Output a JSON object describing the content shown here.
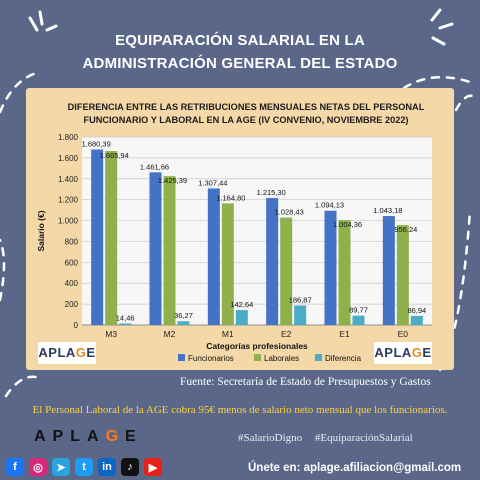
{
  "header": {
    "title_line1": "EQUIPARACIÓN SALARIAL EN LA",
    "title_line2": "ADMINISTRACIÓN GENERAL DEL ESTADO"
  },
  "chart_data": {
    "type": "bar",
    "title_line1": "DIFERENCIA ENTRE LAS RETRIBUCIONES MENSUALES NETAS DEL PERSONAL",
    "title_line2": "FUNCIONARIO Y LABORAL EN LA AGE (IV CONVENIO, NOVIEMBRE 2022)",
    "xlabel": "Categorías profesionales",
    "ylabel": "Salario (€)",
    "ylim": [
      0,
      1800
    ],
    "yticks": [
      0,
      200,
      400,
      600,
      800,
      1000,
      1200,
      1400,
      1600,
      1800
    ],
    "ytick_labels": [
      "0",
      "200",
      "400",
      "600",
      "800",
      "1.000",
      "1.200",
      "1.400",
      "1.600",
      "1.800"
    ],
    "grid": true,
    "legend_position": "bottom",
    "categories": [
      "M3",
      "M2",
      "M1",
      "E2",
      "E1",
      "E0"
    ],
    "series": [
      {
        "name": "Funcionarios",
        "color": "#4472c4",
        "values": [
          1680.39,
          1461.66,
          1307.44,
          1215.3,
          1094.13,
          1043.18
        ],
        "labels": [
          "1.680,39",
          "1.461,66",
          "1.307,44",
          "1.215,30",
          "1.094,13",
          "1.043,18"
        ]
      },
      {
        "name": "Laborales",
        "color": "#8fb14c",
        "values": [
          1665.94,
          1425.39,
          1164.8,
          1028.43,
          1004.36,
          956.24
        ],
        "labels": [
          "1.665,94",
          "1.425,39",
          "1.164,80",
          "1.028,43",
          "1.004,36",
          "956,24"
        ]
      },
      {
        "name": "Diferencia",
        "color": "#4bacc6",
        "values": [
          14.46,
          36.27,
          142.64,
          186.87,
          89.77,
          86.94
        ],
        "labels": [
          "14,46",
          "36,27",
          "142,64",
          "186,87",
          "89,77",
          "86,94"
        ]
      }
    ]
  },
  "badge": {
    "part1": "APLA",
    "part2": "G",
    "part3": "E"
  },
  "source": "Fuente: Secretaría de Estado de Presupuestos y Gastos",
  "note": "El Personal Laboral de la AGE cobra 95€ menos de salario neto mensual que los funcionarios.",
  "brand": {
    "part1": "APLA",
    "part2": "G",
    "part3": "E"
  },
  "hashtags": "#SalarioDigno #EquiparaciónSalarial",
  "socials": [
    {
      "icon": "facebook-icon",
      "glyph": "f",
      "color": "#1877f2"
    },
    {
      "icon": "instagram-icon",
      "glyph": "◎",
      "color": "#d6297a"
    },
    {
      "icon": "telegram-icon",
      "glyph": "➤",
      "color": "#2aa3de"
    },
    {
      "icon": "twitter-icon",
      "glyph": "t",
      "color": "#1d9bf0"
    },
    {
      "icon": "linkedin-icon",
      "glyph": "in",
      "color": "#0a66c2"
    },
    {
      "icon": "tiktok-icon",
      "glyph": "♪",
      "color": "#111111"
    },
    {
      "icon": "youtube-icon",
      "glyph": "▶",
      "color": "#e62117"
    }
  ],
  "join": "Únete en: aplage.afiliacion@gmail.com"
}
